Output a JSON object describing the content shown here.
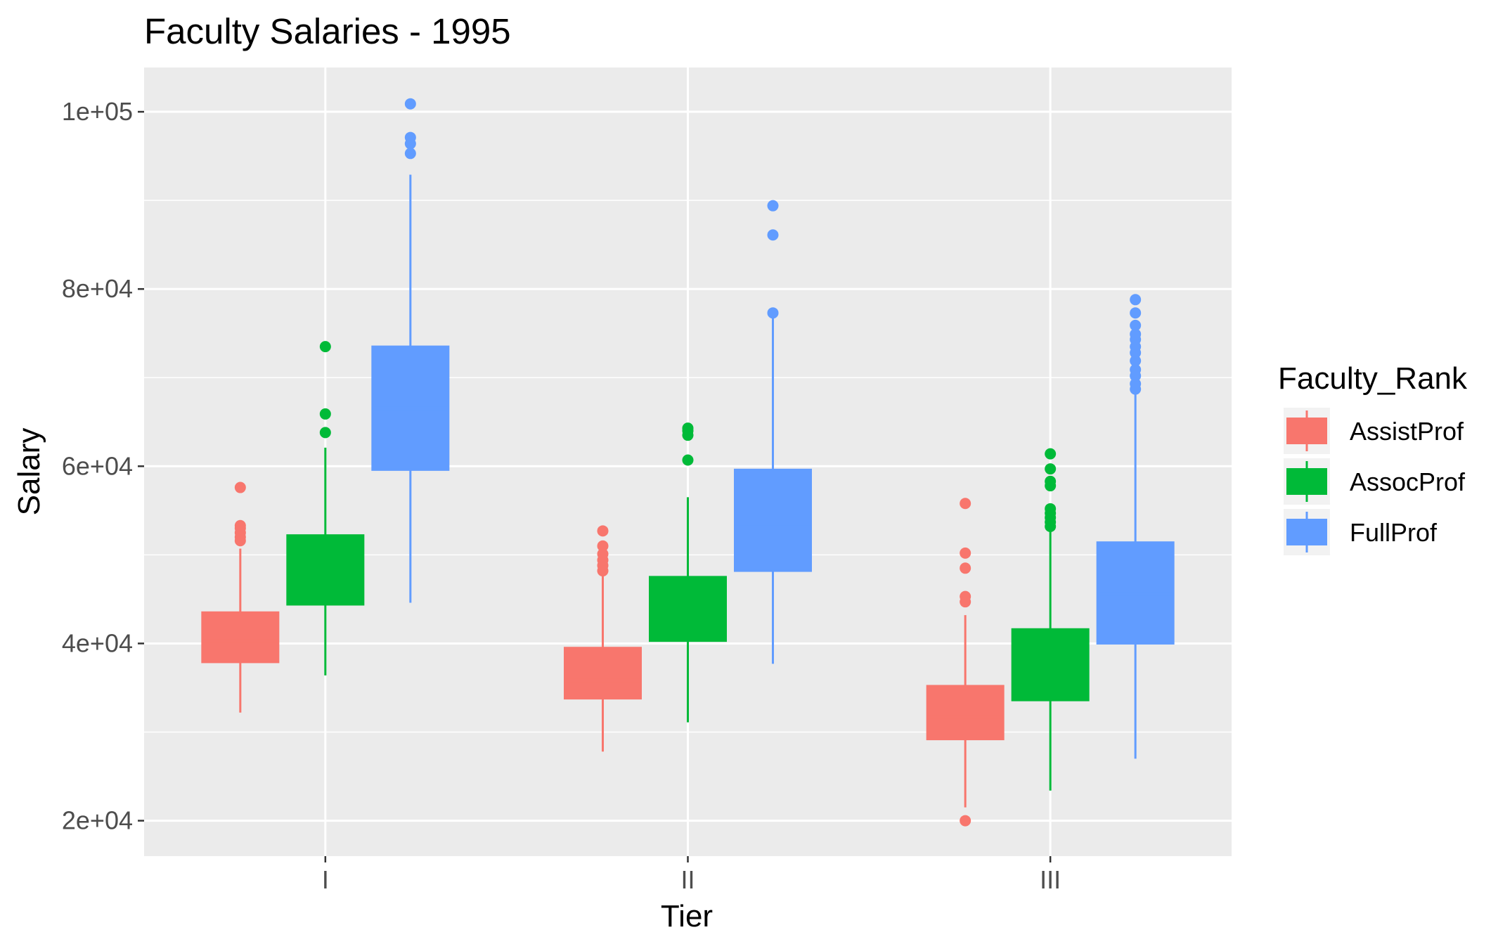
{
  "chart_data": {
    "type": "box",
    "title": "Faculty Salaries - 1995",
    "xlabel": "Tier",
    "ylabel": "Salary",
    "categories": [
      "I",
      "II",
      "III"
    ],
    "ylim": [
      16000,
      105000
    ],
    "y_ticks": [
      20000,
      40000,
      60000,
      80000,
      100000
    ],
    "y_tick_labels": [
      "2e+04",
      "4e+04",
      "6e+04",
      "8e+04",
      "1e+05"
    ],
    "y_minor_ticks": [
      30000,
      50000,
      70000,
      90000
    ],
    "grid": true,
    "legend": {
      "title": "Faculty_Rank",
      "position": "right"
    },
    "series": [
      {
        "name": "AssistProf",
        "color": "#F8766D",
        "boxes": [
          {
            "category": "I",
            "lower_whisker": 32200,
            "q1": 37900,
            "median": 40300,
            "q3": 43500,
            "upper_whisker": 50700,
            "outliers": [
              51600,
              52000,
              52500,
              53000,
              53300,
              57600
            ]
          },
          {
            "category": "II",
            "lower_whisker": 27800,
            "q1": 33800,
            "median": 35800,
            "q3": 39500,
            "upper_whisker": 48000,
            "outliers": [
              48200,
              48800,
              49400,
              50100,
              51000,
              52700
            ]
          },
          {
            "category": "III",
            "lower_whisker": 21500,
            "q1": 29200,
            "median": 31700,
            "q3": 35200,
            "upper_whisker": 43200,
            "outliers": [
              20000,
              44700,
              45300,
              48500,
              50200,
              55800
            ]
          }
        ]
      },
      {
        "name": "AssocProf",
        "color": "#00BA38",
        "boxes": [
          {
            "category": "I",
            "lower_whisker": 36400,
            "q1": 44400,
            "median": 47800,
            "q3": 52200,
            "upper_whisker": 62100,
            "outliers": [
              63800,
              65900,
              73500
            ]
          },
          {
            "category": "II",
            "lower_whisker": 31100,
            "q1": 40300,
            "median": 43200,
            "q3": 47500,
            "upper_whisker": 56500,
            "outliers": [
              60700,
              63500,
              64000,
              64300
            ]
          },
          {
            "category": "III",
            "lower_whisker": 23400,
            "q1": 33600,
            "median": 37500,
            "q3": 41600,
            "upper_whisker": 52800,
            "outliers": [
              53200,
              53700,
              54200,
              54700,
              55200,
              57800,
              58300,
              59700,
              61400
            ]
          }
        ]
      },
      {
        "name": "FullProf",
        "color": "#619CFF",
        "boxes": [
          {
            "category": "I",
            "lower_whisker": 44600,
            "q1": 59600,
            "median": 66500,
            "q3": 73500,
            "upper_whisker": 92900,
            "outliers": [
              95300,
              96400,
              97100,
              100900
            ]
          },
          {
            "category": "II",
            "lower_whisker": 37700,
            "q1": 48200,
            "median": 53100,
            "q3": 59600,
            "upper_whisker": 76700,
            "outliers": [
              77300,
              86100,
              89400
            ]
          },
          {
            "category": "III",
            "lower_whisker": 27000,
            "q1": 40000,
            "median": 45600,
            "q3": 51400,
            "upper_whisker": 68200,
            "outliers": [
              68700,
              69300,
              70200,
              70900,
              71900,
              72800,
              73500,
              74300,
              74900,
              75900,
              77300,
              78800
            ]
          }
        ]
      }
    ]
  }
}
